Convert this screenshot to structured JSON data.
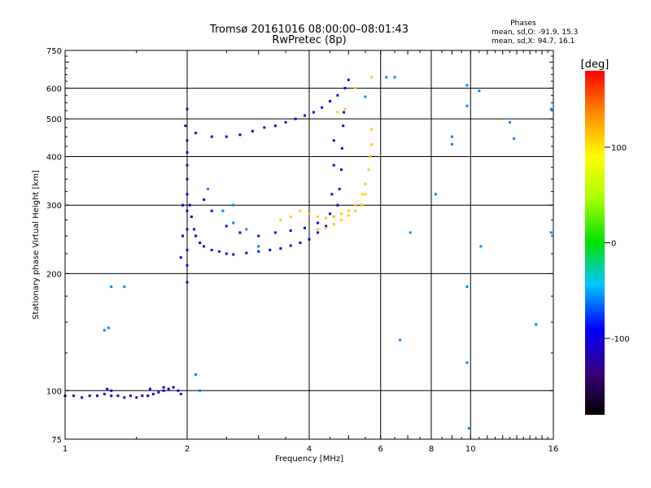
{
  "chart_data": {
    "type": "scatter",
    "title": "Tromsø 20161016 08:00:00–08:01:43",
    "subtitle": "RwPretec (8p)",
    "xlabel": "Frequency [MHz]",
    "ylabel": "Stationary phase Virtual Height [km]",
    "x_scale": "log",
    "y_scale": "log",
    "xlim": [
      1,
      16
    ],
    "ylim": [
      75,
      750
    ],
    "x_ticks": [
      1,
      2,
      4,
      6,
      8,
      10,
      16
    ],
    "x_tick_labels": [
      "1",
      "2",
      "4",
      "6",
      "8",
      "10",
      "16"
    ],
    "y_ticks": [
      75,
      100,
      200,
      300,
      400,
      500,
      600,
      750
    ],
    "y_tick_labels": [
      "75",
      "100",
      "200",
      "300",
      "400",
      "500",
      "600",
      "750"
    ],
    "grid": true,
    "phases_box": {
      "title": "Phases",
      "line_o": "mean, sd,O: -91.9, 15.3",
      "line_x": "mean, sd,X:  94.7, 16.1"
    },
    "colorbar": {
      "label": "[deg]",
      "range": [
        -180,
        180
      ],
      "ticks": [
        100,
        0,
        -100
      ],
      "tick_labels": [
        "100",
        "0",
        "-100"
      ]
    },
    "series": [
      {
        "role": "E-layer echo",
        "phase_deg": -110,
        "points": [
          [
            1.0,
            97
          ],
          [
            1.05,
            97
          ],
          [
            1.1,
            96
          ],
          [
            1.15,
            97
          ],
          [
            1.2,
            97
          ],
          [
            1.25,
            98
          ],
          [
            1.3,
            97
          ],
          [
            1.35,
            97
          ],
          [
            1.4,
            96
          ],
          [
            1.45,
            97
          ],
          [
            1.5,
            96
          ],
          [
            1.55,
            97
          ],
          [
            1.6,
            97
          ],
          [
            1.65,
            98
          ],
          [
            1.7,
            99
          ],
          [
            1.75,
            100
          ],
          [
            1.8,
            101
          ],
          [
            1.85,
            102
          ],
          [
            1.9,
            100
          ],
          [
            1.93,
            98
          ],
          [
            1.27,
            101
          ],
          [
            1.3,
            100
          ],
          [
            1.75,
            102
          ],
          [
            1.62,
            101
          ]
        ]
      },
      {
        "role": "O-mode F-trace",
        "phase_deg": -100,
        "points": [
          [
            2.0,
            190
          ],
          [
            2.0,
            210
          ],
          [
            2.0,
            230
          ],
          [
            2.0,
            260
          ],
          [
            2.0,
            290
          ],
          [
            2.0,
            320
          ],
          [
            2.0,
            350
          ],
          [
            2.0,
            380
          ],
          [
            2.0,
            410
          ],
          [
            2.0,
            440
          ],
          [
            2.03,
            300
          ],
          [
            2.05,
            280
          ],
          [
            2.08,
            260
          ],
          [
            2.1,
            250
          ],
          [
            2.15,
            240
          ],
          [
            2.2,
            235
          ],
          [
            2.3,
            230
          ],
          [
            2.4,
            228
          ],
          [
            2.5,
            225
          ],
          [
            2.6,
            224
          ],
          [
            2.8,
            226
          ],
          [
            3.0,
            228
          ],
          [
            3.2,
            230
          ],
          [
            3.4,
            232
          ],
          [
            3.6,
            236
          ],
          [
            3.8,
            240
          ],
          [
            4.0,
            245
          ],
          [
            4.2,
            255
          ],
          [
            4.4,
            265
          ],
          [
            4.6,
            280
          ],
          [
            4.7,
            300
          ],
          [
            4.75,
            330
          ],
          [
            4.8,
            370
          ],
          [
            4.82,
            420
          ],
          [
            4.85,
            480
          ],
          [
            4.87,
            520
          ],
          [
            2.2,
            310
          ],
          [
            2.3,
            290
          ],
          [
            2.5,
            265
          ],
          [
            2.7,
            255
          ],
          [
            3.0,
            250
          ],
          [
            3.3,
            255
          ],
          [
            3.6,
            258
          ],
          [
            3.9,
            262
          ],
          [
            4.2,
            270
          ],
          [
            4.5,
            285
          ],
          [
            4.55,
            320
          ],
          [
            4.6,
            380
          ],
          [
            4.6,
            440
          ],
          [
            2.1,
            460
          ],
          [
            2.3,
            450
          ],
          [
            2.5,
            450
          ],
          [
            2.7,
            455
          ],
          [
            2.9,
            465
          ],
          [
            3.1,
            475
          ],
          [
            3.3,
            480
          ],
          [
            3.5,
            490
          ],
          [
            3.7,
            500
          ],
          [
            3.9,
            510
          ],
          [
            4.1,
            520
          ],
          [
            4.3,
            535
          ],
          [
            4.5,
            555
          ],
          [
            4.7,
            575
          ],
          [
            4.9,
            600
          ],
          [
            5.0,
            630
          ],
          [
            2.0,
            530
          ],
          [
            1.98,
            480
          ],
          [
            1.95,
            300
          ],
          [
            1.95,
            250
          ],
          [
            1.93,
            220
          ]
        ]
      },
      {
        "role": "X-mode F-trace",
        "phase_deg": 110,
        "points": [
          [
            3.8,
            290
          ],
          [
            4.0,
            285
          ],
          [
            4.2,
            280
          ],
          [
            4.4,
            278
          ],
          [
            4.6,
            280
          ],
          [
            4.8,
            285
          ],
          [
            5.0,
            290
          ],
          [
            5.2,
            300
          ],
          [
            5.4,
            320
          ],
          [
            5.5,
            340
          ],
          [
            5.6,
            370
          ],
          [
            5.65,
            400
          ],
          [
            5.7,
            430
          ],
          [
            5.7,
            470
          ],
          [
            4.2,
            260
          ],
          [
            4.4,
            262
          ],
          [
            4.6,
            268
          ],
          [
            4.8,
            275
          ],
          [
            5.0,
            282
          ],
          [
            5.2,
            290
          ],
          [
            5.4,
            300
          ],
          [
            5.5,
            320
          ],
          [
            3.6,
            280
          ],
          [
            3.4,
            275
          ],
          [
            4.7,
            520
          ],
          [
            4.9,
            530
          ],
          [
            5.2,
            600
          ],
          [
            5.7,
            640
          ]
        ]
      },
      {
        "role": "Scattered echoes",
        "phase_deg": -60,
        "points": [
          [
            1.3,
            185
          ],
          [
            1.4,
            185
          ],
          [
            1.28,
            145
          ],
          [
            1.25,
            143
          ],
          [
            2.25,
            330
          ],
          [
            2.45,
            290
          ],
          [
            2.6,
            270
          ],
          [
            2.8,
            260
          ],
          [
            2.6,
            300
          ],
          [
            3.0,
            235
          ],
          [
            5.5,
            570
          ],
          [
            6.2,
            640
          ],
          [
            6.5,
            640
          ],
          [
            7.1,
            255
          ],
          [
            6.7,
            135
          ],
          [
            9.0,
            450
          ],
          [
            9.0,
            430
          ],
          [
            9.8,
            610
          ],
          [
            9.8,
            540
          ],
          [
            9.9,
            80
          ],
          [
            10.5,
            590
          ],
          [
            10.6,
            235
          ],
          [
            12.5,
            490
          ],
          [
            12.8,
            445
          ],
          [
            14.5,
            148
          ],
          [
            15.8,
            255
          ],
          [
            15.8,
            530
          ],
          [
            9.8,
            185
          ],
          [
            9.8,
            118
          ],
          [
            8.2,
            320
          ],
          [
            2.15,
            100
          ],
          [
            2.1,
            110
          ]
        ]
      }
    ]
  }
}
